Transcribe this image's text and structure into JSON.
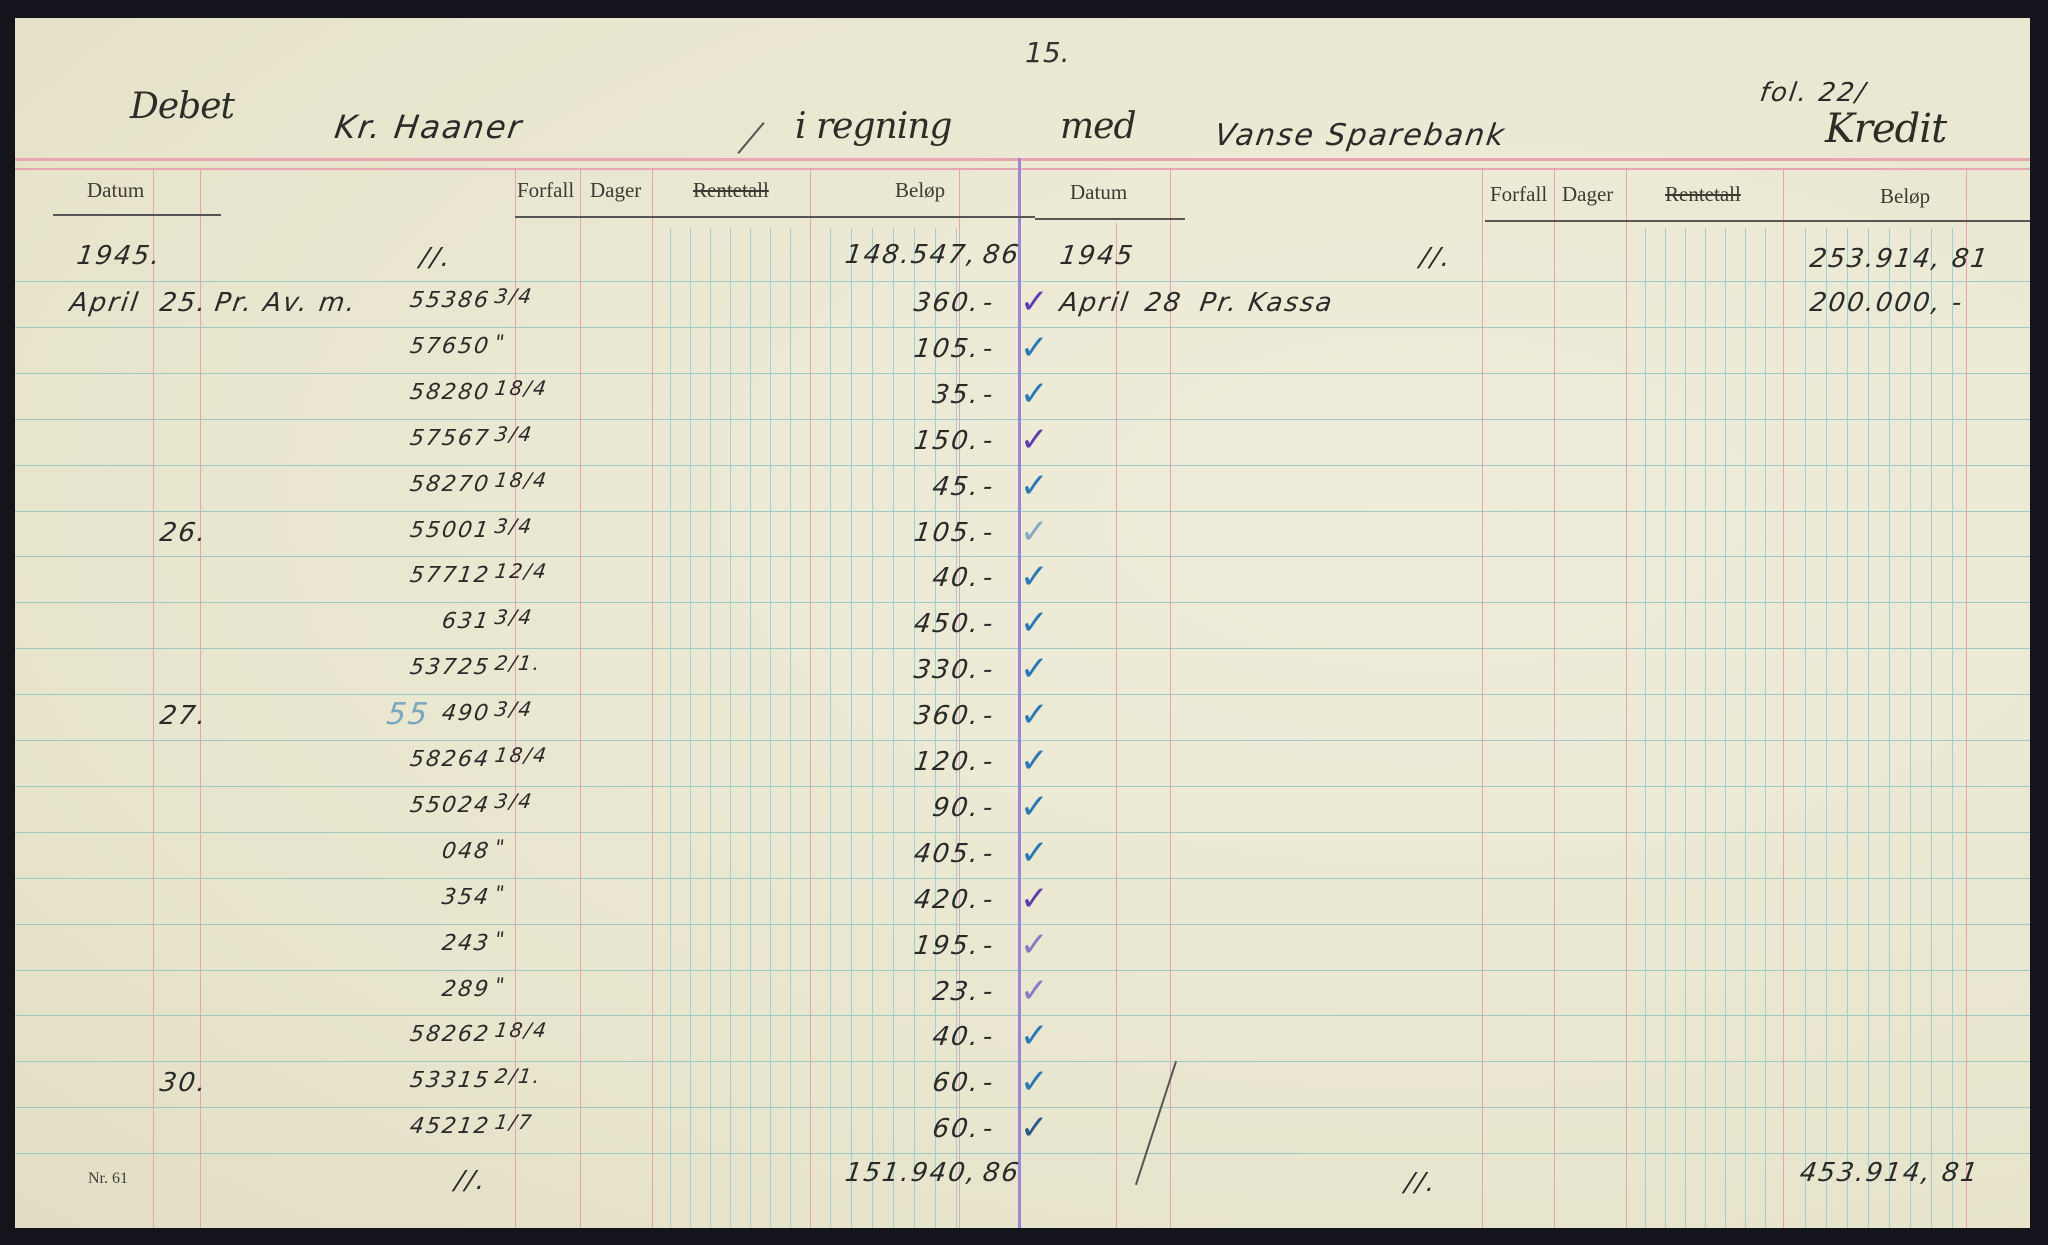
{
  "page_number": "15.",
  "header": {
    "debet": "Debet",
    "account_name": "Kr. Haaner",
    "i_regning": "i regning",
    "med": "med",
    "bank": "Vanse Sparebank",
    "folio": "fol. 22/",
    "kredit": "Kredit"
  },
  "columns": {
    "datum": "Datum",
    "forfall": "Forfall",
    "dager": "Dager",
    "rentetall": "Rentetall",
    "belop": "Beløp"
  },
  "debit": {
    "year": "1945.",
    "carried_mark": "//.",
    "opening_kr": "148.547,",
    "opening_ore": "86",
    "entries": [
      {
        "month": "April",
        "day": "25.",
        "text": "Pr. Av. m.",
        "voucher": "55386",
        "frac": "3/4",
        "kr": "360.",
        "ore": "-",
        "check": "#5a3fb0"
      },
      {
        "month": "",
        "day": "",
        "text": "",
        "voucher": "57650",
        "frac": "\"",
        "kr": "105.",
        "ore": "-",
        "check": "#2a78b8"
      },
      {
        "month": "",
        "day": "",
        "text": "",
        "voucher": "58280",
        "frac": "18/4",
        "kr": "35.",
        "ore": "-",
        "check": "#2a78b8"
      },
      {
        "month": "",
        "day": "",
        "text": "",
        "voucher": "57567",
        "frac": "3/4",
        "kr": "150.",
        "ore": "-",
        "check": "#5a3fb0"
      },
      {
        "month": "",
        "day": "",
        "text": "",
        "voucher": "58270",
        "frac": "18/4",
        "kr": "45.",
        "ore": "-",
        "check": "#2a78b8"
      },
      {
        "month": "",
        "day": "26.",
        "text": "",
        "voucher": "55001",
        "frac": "3/4",
        "kr": "105.",
        "ore": "-",
        "check": "#7fa9c6"
      },
      {
        "month": "",
        "day": "",
        "text": "",
        "voucher": "57712",
        "frac": "12/4",
        "kr": "40.",
        "ore": "-",
        "check": "#2a78b8"
      },
      {
        "month": "",
        "day": "",
        "text": "",
        "voucher": "631",
        "frac": "3/4",
        "kr": "450.",
        "ore": "-",
        "check": "#2a78b8"
      },
      {
        "month": "",
        "day": "",
        "text": "",
        "voucher": "53725",
        "frac": "2/1.",
        "kr": "330.",
        "ore": "-",
        "check": "#2a78b8"
      },
      {
        "month": "",
        "day": "27.",
        "text": "",
        "voucher": "490",
        "frac": "3/4",
        "kr": "360.",
        "ore": "-",
        "check": "#2a78b8",
        "note": "55"
      },
      {
        "month": "",
        "day": "",
        "text": "",
        "voucher": "58264",
        "frac": "18/4",
        "kr": "120.",
        "ore": "-",
        "check": "#2a78b8"
      },
      {
        "month": "",
        "day": "",
        "text": "",
        "voucher": "55024",
        "frac": "3/4",
        "kr": "90.",
        "ore": "-",
        "check": "#2a78b8"
      },
      {
        "month": "",
        "day": "",
        "text": "",
        "voucher": "048",
        "frac": "\"",
        "kr": "405.",
        "ore": "-",
        "check": "#2a78b8"
      },
      {
        "month": "",
        "day": "",
        "text": "",
        "voucher": "354",
        "frac": "\"",
        "kr": "420.",
        "ore": "-",
        "check": "#5a3fb0"
      },
      {
        "month": "",
        "day": "",
        "text": "",
        "voucher": "243",
        "frac": "\"",
        "kr": "195.",
        "ore": "-",
        "check": "#8a78c8"
      },
      {
        "month": "",
        "day": "",
        "text": "",
        "voucher": "289",
        "frac": "\"",
        "kr": "23.",
        "ore": "-",
        "check": "#8a78c8"
      },
      {
        "month": "",
        "day": "",
        "text": "",
        "voucher": "58262",
        "frac": "18/4",
        "kr": "40.",
        "ore": "-",
        "check": "#2a78b8"
      },
      {
        "month": "",
        "day": "30.",
        "text": "",
        "voucher": "53315",
        "frac": "2/1.",
        "kr": "60.",
        "ore": "-",
        "check": "#2a78b8"
      },
      {
        "month": "",
        "day": "",
        "text": "",
        "voucher": "45212",
        "frac": "1/7",
        "kr": "60.",
        "ore": "-",
        "check": "#2a5a8a"
      }
    ],
    "total_mark": "//.",
    "total_kr": "151.940,",
    "total_ore": "86"
  },
  "credit": {
    "year": "1945",
    "carried_mark": "//.",
    "opening": "253.914, 81",
    "entries": [
      {
        "month": "April",
        "day": "28",
        "text": "Pr. Kassa",
        "amount": "200.000, -"
      }
    ],
    "total_mark": "//.",
    "total": "453.914, 81"
  },
  "form_number": "Nr. 61"
}
